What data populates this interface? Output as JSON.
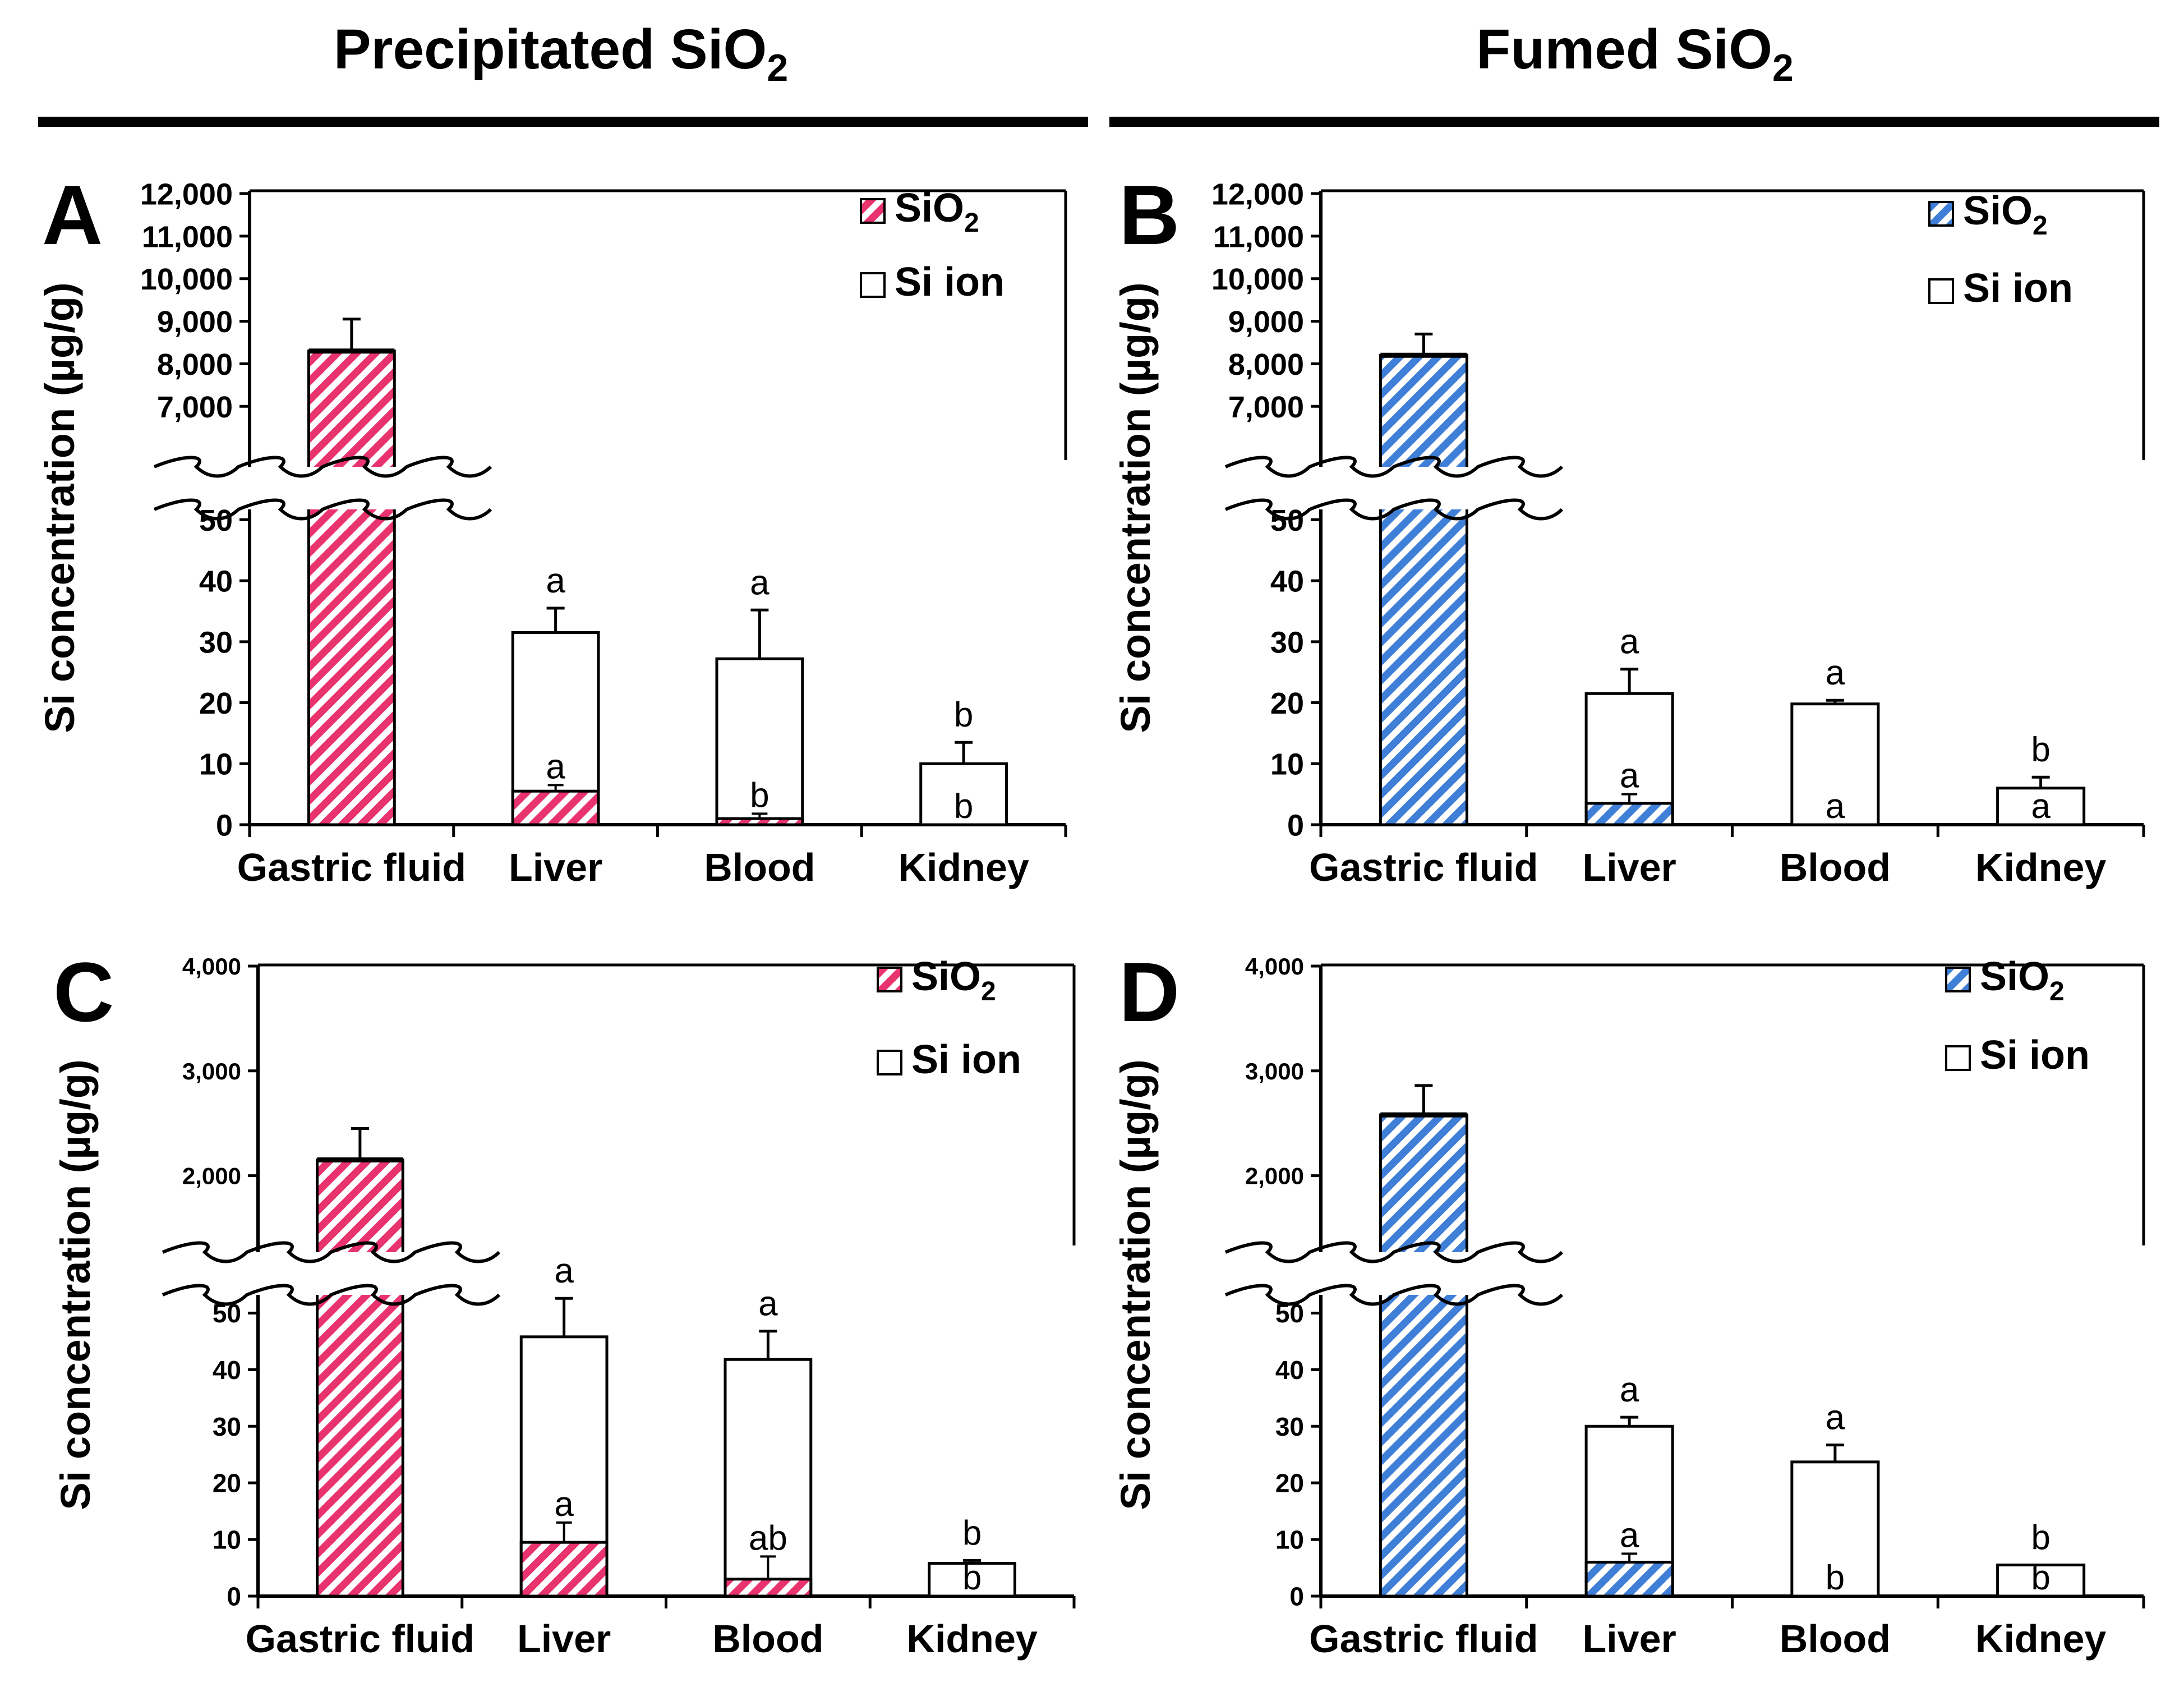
{
  "groups": [
    {
      "title": "Precipitated  SiO",
      "title_sub": "2"
    },
    {
      "title": "Fumed SiO",
      "title_sub": "2"
    }
  ],
  "colors": {
    "precipitated": "#e8336e",
    "fumed": "#3f7fd8",
    "ink": "#000000"
  },
  "chart_data": [
    {
      "panel": "A",
      "type": "bar",
      "stacked": true,
      "broken_axis": true,
      "ylabel": "Si concentration (µg/g)",
      "categories": [
        "Gastric fluid",
        "Liver",
        "Blood",
        "Kidney"
      ],
      "lower_ticks": [
        "0",
        "10",
        "20",
        "30",
        "40",
        "50"
      ],
      "upper_ticks": [
        "7,000",
        "8,000",
        "9,000",
        "10,000",
        "11,000",
        "12,000"
      ],
      "lower_range": [
        0,
        55
      ],
      "upper_range": [
        6200,
        12000
      ],
      "legend": [
        {
          "name": "SiO",
          "sub": "2",
          "pattern": "hatched"
        },
        {
          "name": "Si ion",
          "pattern": "open"
        }
      ],
      "series": [
        {
          "name": "SiO2",
          "values": [
            8300,
            5.5,
            1.0,
            0
          ],
          "errors": [
            750,
            1.0,
            0.8,
            0
          ]
        },
        {
          "name": "Si ion",
          "totals": [
            null,
            31.5,
            27.2,
            10.0
          ],
          "errors": [
            null,
            4.0,
            8.0,
            3.5
          ]
        }
      ],
      "letters_total": [
        "",
        "a",
        "a",
        "b"
      ],
      "letters_sio2": [
        "",
        "a",
        "b",
        "b"
      ]
    },
    {
      "panel": "B",
      "type": "bar",
      "stacked": true,
      "broken_axis": true,
      "ylabel": "Si concentration (µg/g)",
      "categories": [
        "Gastric fluid",
        "Liver",
        "Blood",
        "Kidney"
      ],
      "lower_ticks": [
        "0",
        "10",
        "20",
        "30",
        "40",
        "50"
      ],
      "upper_ticks": [
        "7,000",
        "8,000",
        "9,000",
        "10,000",
        "11,000",
        "12,000"
      ],
      "lower_range": [
        0,
        55
      ],
      "upper_range": [
        6200,
        12000
      ],
      "legend": [
        {
          "name": "SiO",
          "sub": "2",
          "pattern": "hatched"
        },
        {
          "name": "Si ion",
          "pattern": "open"
        }
      ],
      "series": [
        {
          "name": "SiO2",
          "values": [
            8200,
            3.5,
            0,
            0
          ],
          "errors": [
            500,
            1.5,
            0,
            0
          ]
        },
        {
          "name": "Si ion",
          "totals": [
            null,
            21.5,
            19.8,
            6.0
          ],
          "errors": [
            null,
            4.0,
            0.6,
            1.8
          ]
        }
      ],
      "letters_total": [
        "",
        "a",
        "a",
        "b"
      ],
      "letters_sio2": [
        "",
        "a",
        "a",
        "a"
      ]
    },
    {
      "panel": "C",
      "type": "bar",
      "stacked": true,
      "broken_axis": true,
      "ylabel": "Si concentration (µg/g)",
      "categories": [
        "Gastric fluid",
        "Liver",
        "Blood",
        "Kidney"
      ],
      "lower_ticks": [
        "0",
        "10",
        "20",
        "30",
        "40",
        "50"
      ],
      "upper_ticks": [
        "2,000",
        "3,000",
        "4,000"
      ],
      "lower_range": [
        0,
        55
      ],
      "upper_range": [
        1200,
        4000
      ],
      "legend": [
        {
          "name": "SiO",
          "sub": "2",
          "pattern": "hatched"
        },
        {
          "name": "Si ion",
          "pattern": "open"
        }
      ],
      "series": [
        {
          "name": "SiO2",
          "values": [
            2150,
            9.5,
            3.0,
            0
          ],
          "errors": [
            300,
            3.5,
            4.0,
            0
          ]
        },
        {
          "name": "Si ion",
          "totals": [
            null,
            45.8,
            41.8,
            5.8
          ],
          "errors": [
            null,
            6.8,
            5.0,
            0.5
          ]
        }
      ],
      "letters_total": [
        "",
        "a",
        "a",
        "b"
      ],
      "letters_sio2": [
        "",
        "a",
        "ab",
        "b"
      ]
    },
    {
      "panel": "D",
      "type": "bar",
      "stacked": true,
      "broken_axis": true,
      "ylabel": "Si concentration (µg/g)",
      "categories": [
        "Gastric fluid",
        "Liver",
        "Blood",
        "Kidney"
      ],
      "lower_ticks": [
        "0",
        "10",
        "20",
        "30",
        "40",
        "50"
      ],
      "upper_ticks": [
        "2,000",
        "3,000",
        "4,000"
      ],
      "lower_range": [
        0,
        55
      ],
      "upper_range": [
        1200,
        4000
      ],
      "legend": [
        {
          "name": "SiO",
          "sub": "2",
          "pattern": "hatched"
        },
        {
          "name": "Si ion",
          "pattern": "open"
        }
      ],
      "series": [
        {
          "name": "SiO2",
          "values": [
            2580,
            6.0,
            0,
            0
          ],
          "errors": [
            280,
            1.5,
            0,
            0
          ]
        },
        {
          "name": "Si ion",
          "totals": [
            null,
            30.0,
            23.7,
            5.5
          ],
          "errors": [
            null,
            1.6,
            3.0,
            0
          ]
        }
      ],
      "letters_total": [
        "",
        "a",
        "a",
        "b"
      ],
      "letters_sio2": [
        "",
        "a",
        "b",
        "b"
      ]
    }
  ]
}
